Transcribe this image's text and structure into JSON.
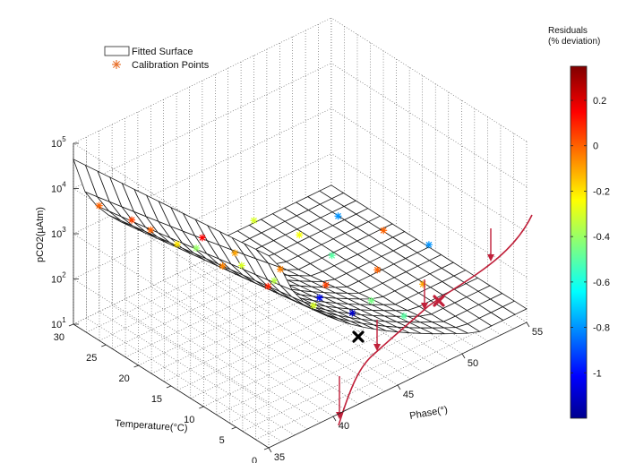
{
  "chart_data": {
    "type": "surface",
    "title": "",
    "axes": {
      "x": {
        "label": "Phase(°)",
        "range": [
          35,
          55
        ],
        "ticks": [
          "35",
          "40",
          "45",
          "50",
          "55"
        ]
      },
      "y": {
        "label": "Temperature(°C)",
        "range": [
          0,
          30
        ],
        "ticks": [
          "0",
          "5",
          "10",
          "15",
          "20",
          "25",
          "30"
        ]
      },
      "z": {
        "label": "pCO2(µAtm)",
        "scale": "log",
        "range": [
          10,
          100000
        ],
        "ticks": [
          {
            "base": "10",
            "exp": "1"
          },
          {
            "base": "10",
            "exp": "2"
          },
          {
            "base": "10",
            "exp": "3"
          },
          {
            "base": "10",
            "exp": "4"
          },
          {
            "base": "10",
            "exp": "5"
          }
        ]
      }
    },
    "legend": {
      "placement": "top-left",
      "entries": [
        {
          "label": "Fitted Surface",
          "marker": "rectangle"
        },
        {
          "label": "Calibration Points",
          "marker": "asterisk",
          "color": "#e8702a"
        }
      ]
    },
    "colorbar": {
      "title_line1": "Residuals",
      "title_line2": "(% deviation)",
      "range": [
        -1.2,
        0.35
      ],
      "ticks": [
        "0.2",
        "0",
        "-0.2",
        "-0.4",
        "-0.6",
        "-0.8",
        "-1"
      ],
      "tick_values": [
        0.2,
        0,
        -0.2,
        -0.4,
        -0.6,
        -0.8,
        -1
      ],
      "colormap": "jet"
    },
    "calibration_points": [
      {
        "phase": 37,
        "temperature": 30,
        "residual": 0.0
      },
      {
        "phase": 37,
        "temperature": 25,
        "residual": 0.05
      },
      {
        "phase": 38,
        "temperature": 20,
        "residual": -0.2
      },
      {
        "phase": 39,
        "temperature": 15,
        "residual": -0.05
      },
      {
        "phase": 40,
        "temperature": 10,
        "residual": 0.1
      },
      {
        "phase": 41,
        "temperature": 5,
        "residual": -0.3
      },
      {
        "phase": 41,
        "temperature": 30,
        "residual": 0.0
      },
      {
        "phase": 42,
        "temperature": 25,
        "residual": -0.4
      },
      {
        "phase": 43,
        "temperature": 20,
        "residual": -0.3
      },
      {
        "phase": 43,
        "temperature": 15,
        "residual": -0.35
      },
      {
        "phase": 44,
        "temperature": 10,
        "residual": -1.0
      },
      {
        "phase": 44,
        "temperature": 5,
        "residual": -1.1
      },
      {
        "phase": 45,
        "temperature": 30,
        "residual": 0.15
      },
      {
        "phase": 45,
        "temperature": 25,
        "residual": -0.1
      },
      {
        "phase": 46,
        "temperature": 20,
        "residual": -0.05
      },
      {
        "phase": 47,
        "temperature": 15,
        "residual": 0.05
      },
      {
        "phase": 48,
        "temperature": 10,
        "residual": -0.45
      },
      {
        "phase": 48,
        "temperature": 5,
        "residual": -0.5
      },
      {
        "phase": 49,
        "temperature": 30,
        "residual": -0.3
      },
      {
        "phase": 50,
        "temperature": 25,
        "residual": -0.25
      },
      {
        "phase": 50,
        "temperature": 20,
        "residual": -0.5
      },
      {
        "phase": 51,
        "temperature": 15,
        "residual": 0.0
      },
      {
        "phase": 52,
        "temperature": 10,
        "residual": -0.1
      },
      {
        "phase": 53,
        "temperature": 25,
        "residual": -0.8
      },
      {
        "phase": 54,
        "temperature": 20,
        "residual": 0.0
      },
      {
        "phase": 55,
        "temperature": 15,
        "residual": -0.8
      }
    ],
    "annotations": [
      {
        "shape": "x-mark",
        "color": "#000000"
      },
      {
        "shape": "x-mark",
        "color": "#c0203a"
      },
      {
        "shape": "curve",
        "color": "#c0203a"
      },
      {
        "shape": "arrow",
        "color": "#c0203a",
        "count": 5
      }
    ]
  }
}
